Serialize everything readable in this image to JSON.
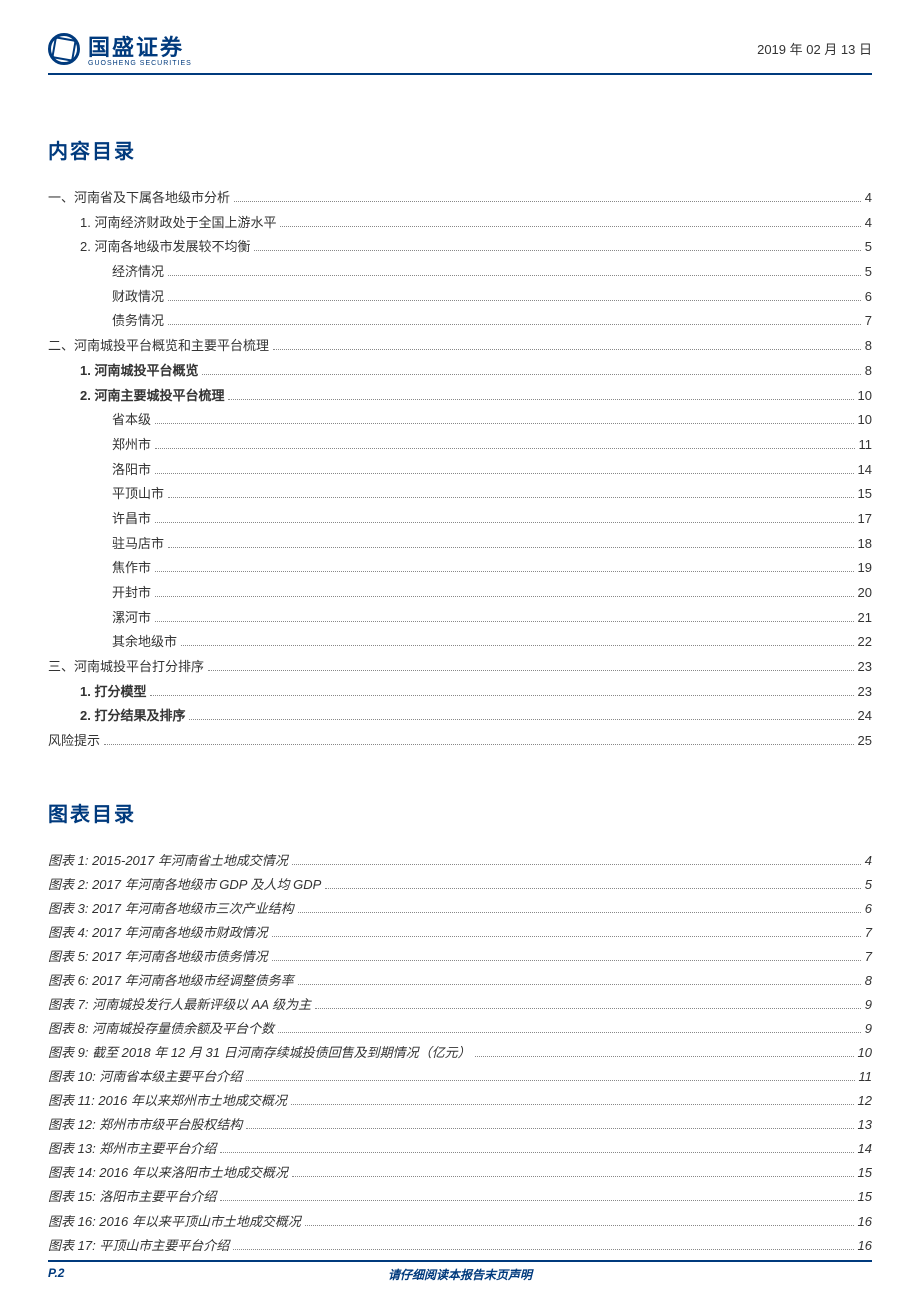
{
  "header": {
    "company_name": "国盛证券",
    "company_sub": "GUOSHENG SECURITIES",
    "date": "2019 年 02 月 13 日"
  },
  "toc_title": "内容目录",
  "toc": [
    {
      "label": "一、河南省及下属各地级市分析",
      "page": "4",
      "indent": 0,
      "bold": false
    },
    {
      "label": "1. 河南经济财政处于全国上游水平",
      "page": "4",
      "indent": 1,
      "bold": false
    },
    {
      "label": "2. 河南各地级市发展较不均衡",
      "page": "5",
      "indent": 1,
      "bold": false
    },
    {
      "label": "经济情况",
      "page": "5",
      "indent": 2,
      "bold": false
    },
    {
      "label": "财政情况",
      "page": "6",
      "indent": 2,
      "bold": false
    },
    {
      "label": "债务情况",
      "page": "7",
      "indent": 2,
      "bold": false
    },
    {
      "label": "二、河南城投平台概览和主要平台梳理",
      "page": "8",
      "indent": 0,
      "bold": false
    },
    {
      "label": "1. 河南城投平台概览",
      "page": "8",
      "indent": 1,
      "bold": true
    },
    {
      "label": "2. 河南主要城投平台梳理",
      "page": "10",
      "indent": 1,
      "bold": true
    },
    {
      "label": "省本级",
      "page": "10",
      "indent": 2,
      "bold": false
    },
    {
      "label": "郑州市",
      "page": "11",
      "indent": 2,
      "bold": false
    },
    {
      "label": "洛阳市",
      "page": "14",
      "indent": 2,
      "bold": false
    },
    {
      "label": "平顶山市",
      "page": "15",
      "indent": 2,
      "bold": false
    },
    {
      "label": "许昌市",
      "page": "17",
      "indent": 2,
      "bold": false
    },
    {
      "label": "驻马店市",
      "page": "18",
      "indent": 2,
      "bold": false
    },
    {
      "label": "焦作市",
      "page": "19",
      "indent": 2,
      "bold": false
    },
    {
      "label": "开封市",
      "page": "20",
      "indent": 2,
      "bold": false
    },
    {
      "label": "漯河市",
      "page": "21",
      "indent": 2,
      "bold": false
    },
    {
      "label": "其余地级市",
      "page": "22",
      "indent": 2,
      "bold": false
    },
    {
      "label": "三、河南城投平台打分排序",
      "page": "23",
      "indent": 0,
      "bold": false
    },
    {
      "label": "1. 打分模型",
      "page": "23",
      "indent": 1,
      "bold": true
    },
    {
      "label": "2. 打分结果及排序",
      "page": "24",
      "indent": 1,
      "bold": true
    },
    {
      "label": "风险提示",
      "page": "25",
      "indent": 0,
      "bold": false
    }
  ],
  "fig_title": "图表目录",
  "figures": [
    {
      "label": "图表 1:  2015-2017 年河南省土地成交情况",
      "page": "4"
    },
    {
      "label": "图表 2:  2017 年河南各地级市 GDP 及人均 GDP",
      "page": "5"
    },
    {
      "label": "图表 3:  2017 年河南各地级市三次产业结构",
      "page": "6"
    },
    {
      "label": "图表 4:  2017 年河南各地级市财政情况",
      "page": "7"
    },
    {
      "label": "图表 5:  2017 年河南各地级市债务情况",
      "page": "7"
    },
    {
      "label": "图表 6:  2017 年河南各地级市经调整债务率",
      "page": "8"
    },
    {
      "label": "图表 7:  河南城投发行人最新评级以 AA 级为主",
      "page": "9"
    },
    {
      "label": "图表 8:  河南城投存量债余额及平台个数",
      "page": "9"
    },
    {
      "label": "图表 9:  截至 2018 年 12 月 31 日河南存续城投债回售及到期情况（亿元）",
      "page": "10"
    },
    {
      "label": "图表 10:  河南省本级主要平台介绍",
      "page": "11"
    },
    {
      "label": "图表 11:  2016 年以来郑州市土地成交概况",
      "page": "12"
    },
    {
      "label": "图表 12:  郑州市市级平台股权结构",
      "page": "13"
    },
    {
      "label": "图表 13:  郑州市主要平台介绍",
      "page": "14"
    },
    {
      "label": "图表 14:  2016 年以来洛阳市土地成交概况",
      "page": "15"
    },
    {
      "label": "图表 15:  洛阳市主要平台介绍",
      "page": "15"
    },
    {
      "label": "图表 16:  2016 年以来平顶山市土地成交概况",
      "page": "16"
    },
    {
      "label": "图表 17:  平顶山市主要平台介绍",
      "page": "16"
    }
  ],
  "footer": {
    "page_label": "P.2",
    "disclaimer": "请仔细阅读本报告末页声明"
  },
  "colors": {
    "brand": "#003a7d",
    "text": "#333333",
    "background": "#ffffff",
    "dots": "#888888"
  },
  "typography": {
    "title_fontsize": 20,
    "body_fontsize": 13,
    "footer_fontsize": 12,
    "company_fontsize": 22
  }
}
